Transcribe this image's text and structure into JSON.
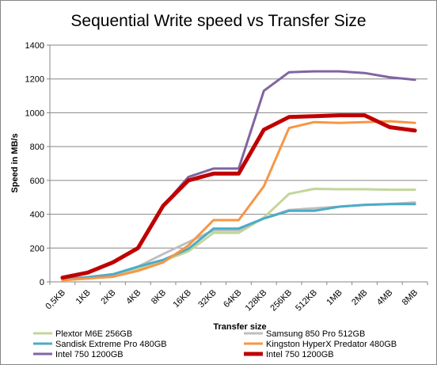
{
  "chart_data": {
    "type": "line",
    "title": "Sequential Write speed vs Transfer Size",
    "xlabel": "Transfer size",
    "ylabel": "Speed in MB/s",
    "ylim": [
      0,
      1400
    ],
    "yticks": [
      0,
      200,
      400,
      600,
      800,
      1000,
      1200,
      1400
    ],
    "grid": "horizontal",
    "legend": "bottom",
    "categories": [
      "0,5KB",
      "1KB",
      "2KB",
      "4KB",
      "8KB",
      "16KB",
      "32KB",
      "64KB",
      "128KB",
      "256KB",
      "512KB",
      "1MB",
      "2MB",
      "4MB",
      "8MB"
    ],
    "series": [
      {
        "name": "Plextor M6E 256GB",
        "color": "#c3d69b",
        "width": 3,
        "values": [
          10,
          20,
          35,
          75,
          125,
          180,
          290,
          290,
          380,
          520,
          550,
          548,
          548,
          545,
          545
        ]
      },
      {
        "name": "Samsung 850 Pro 512GB",
        "color": "#bfbfbf",
        "width": 3,
        "values": [
          15,
          25,
          40,
          90,
          165,
          235,
          305,
          305,
          375,
          425,
          435,
          445,
          455,
          460,
          470
        ]
      },
      {
        "name": "Sandisk Extreme Pro 480GB",
        "color": "#4bacc6",
        "width": 3,
        "values": [
          15,
          28,
          45,
          90,
          130,
          195,
          315,
          315,
          375,
          420,
          420,
          445,
          455,
          460,
          460
        ]
      },
      {
        "name": "Kingston HyperX Predator 480GB",
        "color": "#f79646",
        "width": 3,
        "values": [
          10,
          20,
          30,
          65,
          115,
          215,
          365,
          365,
          565,
          910,
          945,
          940,
          945,
          950,
          940
        ]
      },
      {
        "name": "Intel 750 1200GB",
        "color": "#8064a2",
        "width": 3,
        "values": [
          25,
          55,
          120,
          200,
          450,
          620,
          670,
          670,
          1130,
          1240,
          1245,
          1245,
          1235,
          1210,
          1195
        ]
      },
      {
        "name": "Intel 750 1200GB",
        "color": "#c00000",
        "width": 5,
        "values": [
          25,
          55,
          115,
          200,
          450,
          600,
          640,
          640,
          900,
          975,
          980,
          985,
          985,
          915,
          895
        ]
      }
    ]
  }
}
